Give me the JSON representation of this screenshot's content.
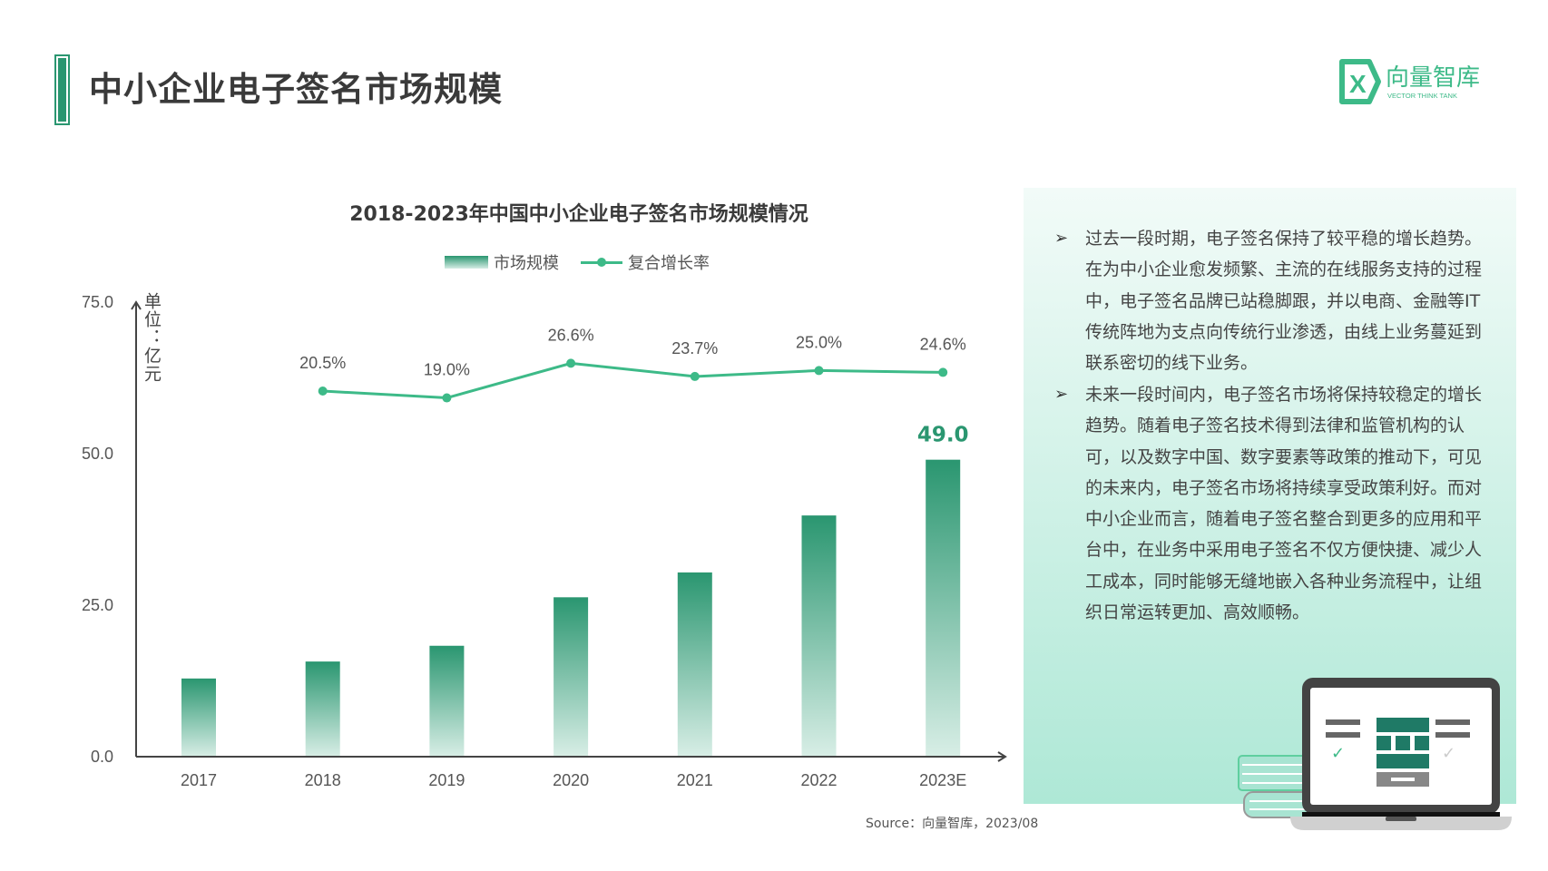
{
  "header": {
    "title": "中小企业电子签名市场规模"
  },
  "logo": {
    "name": "向量智库",
    "subtitle": "VECTOR THINK TANK",
    "brand_color": "#3dba88"
  },
  "chart_data": {
    "type": "bar+line",
    "title": "2018-2023年中国中小企业电子签名市场规模情况",
    "categories": [
      "2017",
      "2018",
      "2019",
      "2020",
      "2021",
      "2022",
      "2023E"
    ],
    "ylabel": "单位：亿元",
    "ylim": [
      0,
      75
    ],
    "yticks": [
      "0.0",
      "25.0",
      "50.0",
      "75.0"
    ],
    "series": [
      {
        "name": "市场规模",
        "type": "bar",
        "values": [
          12.9,
          15.7,
          18.3,
          26.3,
          30.4,
          39.8,
          49.0
        ],
        "color": "#2a9670",
        "labeled": {
          "index": 6,
          "label": "49.0"
        }
      },
      {
        "name": "复合增长率",
        "type": "line",
        "x": [
          "2018",
          "2019",
          "2020",
          "2021",
          "2022",
          "2023E"
        ],
        "values": [
          20.5,
          19.0,
          26.6,
          23.7,
          25.0,
          24.6
        ],
        "labels": [
          "20.5%",
          "19.0%",
          "26.6%",
          "23.7%",
          "25.0%",
          "24.6%"
        ],
        "color": "#3dba88"
      }
    ],
    "legend": "top-center",
    "grid": false
  },
  "panel": {
    "bullets": [
      "过去一段时期，电子签名保持了较平稳的增长趋势。在为中小企业愈发频繁、主流的在线服务支持的过程中，电子签名品牌已站稳脚跟，并以电商、金融等IT传统阵地为支点向传统行业渗透，由线上业务蔓延到联系密切的线下业务。",
      "未来一段时间内，电子签名市场将保持较稳定的增长趋势。随着电子签名技术得到法律和监管机构的认可，以及数字中国、数字要素等政策的推动下，可见的未来内，电子签名市场将持续享受政策利好。而对中小企业而言，随着电子签名整合到更多的应用和平台中，在业务中采用电子签名不仅方便快捷、减少人工成本，同时能够无缝地嵌入各种业务流程中，让组织日常运转更加、高效顺畅。"
    ],
    "bullet_icon": "arrow-bullet-icon"
  },
  "source": "Source：向量智库，2023/08"
}
